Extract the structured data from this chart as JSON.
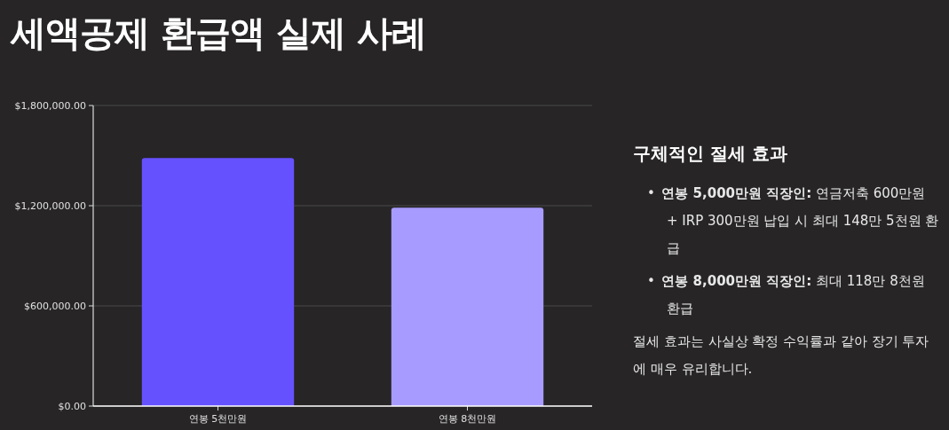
{
  "chart_data": {
    "type": "bar",
    "title": "세액공제 환급액 실제 사례",
    "categories": [
      "연봉 5천만원",
      "연봉 8천만원"
    ],
    "values": [
      1485000,
      1188000
    ],
    "colors": [
      "#6651ff",
      "#a89bff"
    ],
    "ylim": [
      0,
      1800000
    ],
    "yticks": [
      {
        "value": 0,
        "label": "$0.00"
      },
      {
        "value": 600000,
        "label": "$600,000.00"
      },
      {
        "value": 1200000,
        "label": "$1,200,000.00"
      },
      {
        "value": 1800000,
        "label": "$1,800,000.00"
      }
    ],
    "grid": "y",
    "annotations": [
      "구체적인 절세 효과",
      "• **연봉 5,000만원 직장인:** 연금저축 600만원 + IRP 300만원 납입 시 최대 148만 5천원 환급",
      "• **연봉 8,000만원 직장인:** 최대 118만 8천원 환급",
      "절세 효과는 사실상 확정 수익률과 같아 장기 투자에 매우 유리합니다."
    ]
  }
}
